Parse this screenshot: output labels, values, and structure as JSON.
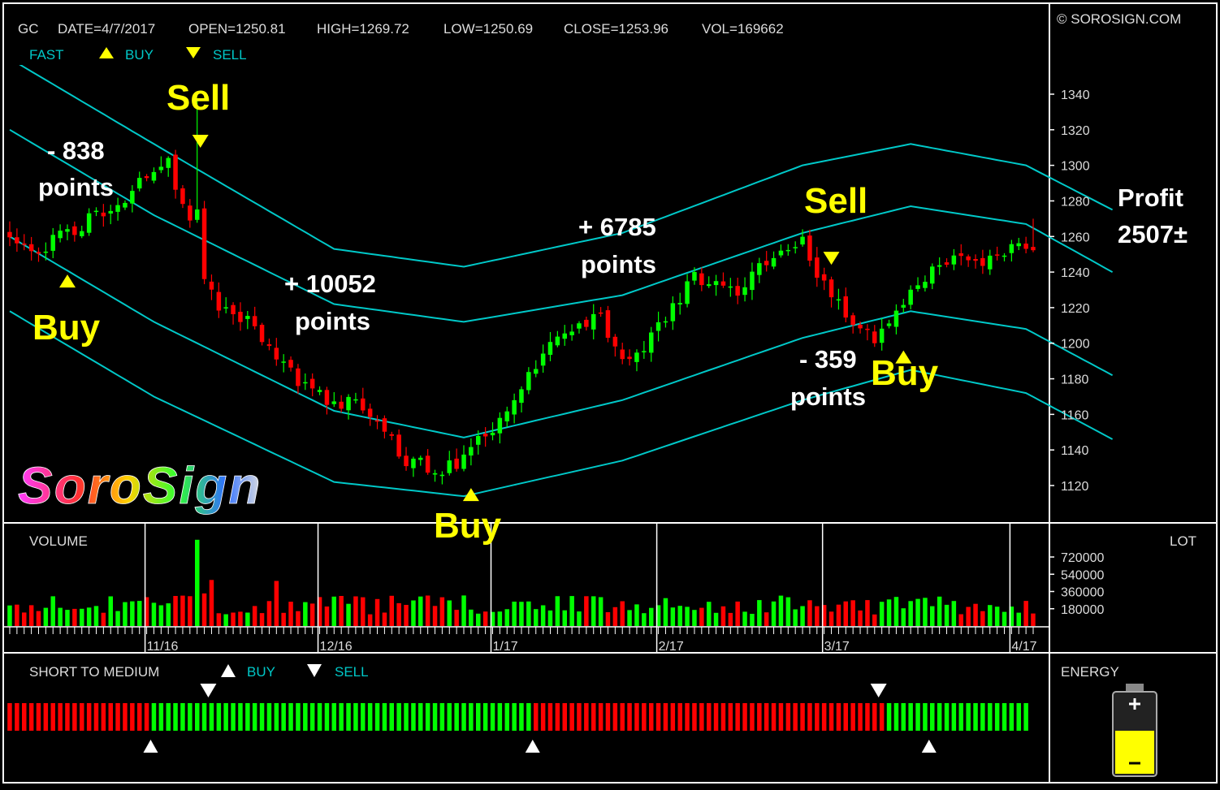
{
  "header": {
    "symbol": "GC",
    "date": "DATE=4/7/2017",
    "open": "OPEN=1250.81",
    "high": "HIGH=1269.72",
    "low": "LOW=1250.69",
    "close": "CLOSE=1253.96",
    "vol": "VOL=169662",
    "copyright": "© SOROSIGN.COM"
  },
  "legend": {
    "fast": "FAST",
    "buy": "BUY",
    "sell": "SELL"
  },
  "logo": "SoroSign",
  "volume_panel": {
    "title": "VOLUME",
    "unit": "LOT"
  },
  "indicator_panel": {
    "title": "SHORT TO MEDIUM",
    "buy": "BUY",
    "sell": "SELL",
    "energy_title": "ENERGY",
    "energy_level": 0.45
  },
  "annotations": {
    "sell1": "Sell",
    "sell2": "Sell",
    "buy1": "Buy",
    "buy2": "Buy",
    "buy3": "Buy",
    "a1_value": "- 838",
    "a1_unit": "points",
    "a2_value": "+ 10052",
    "a2_unit": "points",
    "a3_value": "+ 6785",
    "a3_unit": "points",
    "a4_value": "- 359",
    "a4_unit": "points",
    "profit_label": "Profit",
    "profit_value": "2507±"
  },
  "colors": {
    "up": "#00ff00",
    "down": "#ff0000",
    "band": "#00c8c8",
    "marker": "#ffff00",
    "text": "#dcdcdc",
    "grid_border": "#ffffff",
    "energy": "#ffff00"
  },
  "chart_data": {
    "type": "candlestick",
    "ylim": [
      1103,
      1355
    ],
    "price_ticks": [
      1120,
      1140,
      1160,
      1180,
      1200,
      1220,
      1240,
      1260,
      1280,
      1300,
      1320,
      1340
    ],
    "volume_ticks": [
      "180000",
      "360000",
      "540000",
      "720000"
    ],
    "volume_tick_values": [
      180000,
      360000,
      540000,
      720000
    ],
    "volume_ylim": [
      0,
      900000
    ],
    "x_labels": [
      {
        "label": "11/16",
        "index": 19
      },
      {
        "label": "12/16",
        "index": 43
      },
      {
        "label": "1/17",
        "index": 67
      },
      {
        "label": "2/17",
        "index": 90
      },
      {
        "label": "3/17",
        "index": 113
      },
      {
        "label": "4/17",
        "index": 139
      }
    ],
    "anchor_points": [
      [
        0,
        1258
      ],
      [
        4,
        1252
      ],
      [
        8,
        1262
      ],
      [
        11,
        1270
      ],
      [
        14,
        1272
      ],
      [
        16,
        1278
      ],
      [
        19,
        1296
      ],
      [
        22,
        1300
      ],
      [
        25,
        1270
      ],
      [
        26,
        1275
      ],
      [
        27,
        1235
      ],
      [
        29,
        1218
      ],
      [
        33,
        1212
      ],
      [
        36,
        1200
      ],
      [
        38,
        1188
      ],
      [
        41,
        1175
      ],
      [
        44,
        1168
      ],
      [
        48,
        1165
      ],
      [
        51,
        1156
      ],
      [
        53,
        1148
      ],
      [
        54,
        1135
      ],
      [
        57,
        1132
      ],
      [
        60,
        1130
      ],
      [
        62,
        1133
      ],
      [
        64,
        1140
      ],
      [
        66,
        1148
      ],
      [
        68,
        1158
      ],
      [
        70,
        1168
      ],
      [
        73,
        1185
      ],
      [
        76,
        1205
      ],
      [
        79,
        1212
      ],
      [
        82,
        1215
      ],
      [
        84,
        1200
      ],
      [
        86,
        1188
      ],
      [
        89,
        1202
      ],
      [
        92,
        1220
      ],
      [
        95,
        1238
      ],
      [
        98,
        1232
      ],
      [
        101,
        1230
      ],
      [
        104,
        1242
      ],
      [
        107,
        1255
      ],
      [
        110,
        1258
      ],
      [
        112,
        1235
      ],
      [
        115,
        1225
      ],
      [
        117,
        1212
      ],
      [
        119,
        1203
      ],
      [
        121,
        1205
      ],
      [
        123,
        1216
      ],
      [
        126,
        1232
      ],
      [
        128,
        1242
      ],
      [
        131,
        1248
      ],
      [
        134,
        1246
      ],
      [
        137,
        1248
      ],
      [
        139,
        1252
      ],
      [
        142,
        1256
      ]
    ],
    "bands_at_index": {
      "index": [
        0,
        20,
        45,
        63,
        85,
        110,
        125,
        141,
        153
      ],
      "upper1": [
        1360,
        1312,
        1253,
        1243,
        1262,
        1300,
        1312,
        1300,
        1275
      ],
      "upper2": [
        1320,
        1272,
        1222,
        1212,
        1227,
        1262,
        1277,
        1267,
        1240
      ],
      "lower1": [
        1260,
        1212,
        1162,
        1147,
        1168,
        1203,
        1218,
        1208,
        1182
      ],
      "lower2": [
        1218,
        1170,
        1122,
        1114,
        1134,
        1168,
        1185,
        1172,
        1146
      ]
    },
    "buy_signals": [
      8,
      64,
      124
    ],
    "sell_signals": [
      26,
      114
    ],
    "indicator_segments": [
      {
        "color": "red",
        "from": 0,
        "to": 19
      },
      {
        "color": "green",
        "from": 20,
        "to": 72
      },
      {
        "color": "red",
        "from": 73,
        "to": 121
      },
      {
        "color": "green",
        "from": 122,
        "to": 141
      }
    ],
    "indicator_buy_marks": [
      20,
      73,
      128
    ],
    "indicator_sell_marks": [
      28,
      121
    ],
    "spikes": {
      "high_26": 1337,
      "high_142": 1270
    }
  }
}
